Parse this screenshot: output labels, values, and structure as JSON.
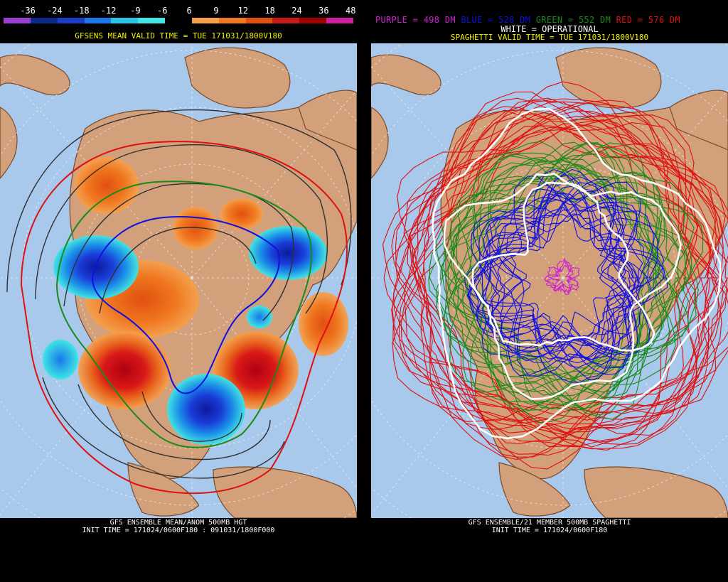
{
  "left": {
    "colorbar": {
      "labels": [
        "-36",
        "-24",
        "-18",
        "-12",
        "-9",
        "-6",
        "6",
        "9",
        "12",
        "18",
        "24",
        "36",
        "48"
      ],
      "colors": [
        "#9b3fd1",
        "#0b2a8a",
        "#1a3cc8",
        "#1a78e8",
        "#27c6e6",
        "#3ee6e6",
        "#000000",
        "#f7a04a",
        "#f07820",
        "#e05010",
        "#c81818",
        "#a00000",
        "#d020a0"
      ]
    },
    "valid_time": "GFSENS MEAN VALID TIME = TUE 171031/1800V180",
    "footer_title": "GFS ENSEMBLE MEAN/ANOM 500MB HGT",
    "footer_init": "INIT TIME = 171024/0600F180 : 091031/1800F000"
  },
  "right": {
    "legend": {
      "purple": "PURPLE = 498 DM",
      "blue": "BLUE = 528 DM",
      "green": "GREEN = 552 DM",
      "red": "RED = 576 DM",
      "white": "WHITE = OPERATIONAL"
    },
    "valid_time": "SPAGHETTI VALID TIME = TUE 171031/1800V180",
    "footer_title": "GFS ENSEMBLE/21 MEMBER 500MB SPAGHETTI",
    "footer_init": "INIT TIME = 171024/0600F180"
  },
  "colors": {
    "ocean": "#a8c8ec",
    "land": "#d2a07a",
    "coast": "#7a4a2a",
    "header_yellow": "#f0f000",
    "purple": "#d020d0",
    "blue": "#1010e0",
    "green": "#1a8a1a",
    "red": "#e01010",
    "white": "#ffffff"
  }
}
